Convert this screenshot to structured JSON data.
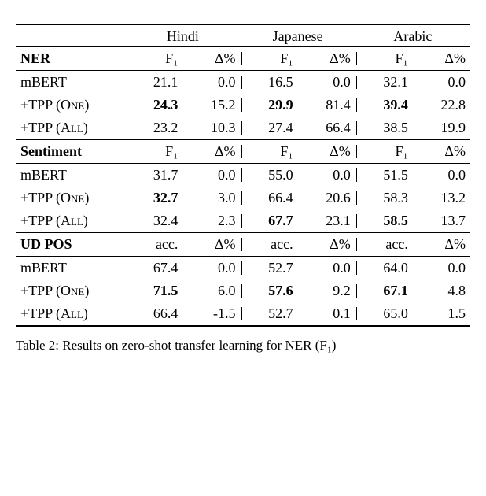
{
  "langs": [
    "Hindi",
    "Japanese",
    "Arabic"
  ],
  "sections": [
    {
      "name": "NER",
      "metric": "F₁",
      "delta": "Δ%",
      "rows": [
        {
          "label": "mBERT",
          "v": [
            "21.1",
            "0.0",
            "16.5",
            "0.0",
            "32.1",
            "0.0"
          ],
          "bold": [
            false,
            false,
            false,
            false,
            false,
            false
          ]
        },
        {
          "label_html": "+TPP (O<span class=\"sc\">ne</span>)",
          "v": [
            "24.3",
            "15.2",
            "29.9",
            "81.4",
            "39.4",
            "22.8"
          ],
          "bold": [
            true,
            false,
            true,
            false,
            true,
            false
          ]
        },
        {
          "label_html": "+TPP (A<span class=\"sc\">ll</span>)",
          "v": [
            "23.2",
            "10.3",
            "27.4",
            "66.4",
            "38.5",
            "19.9"
          ],
          "bold": [
            false,
            false,
            false,
            false,
            false,
            false
          ]
        }
      ]
    },
    {
      "name": "Sentiment",
      "metric": "F₁",
      "delta": "Δ%",
      "rows": [
        {
          "label": "mBERT",
          "v": [
            "31.7",
            "0.0",
            "55.0",
            "0.0",
            "51.5",
            "0.0"
          ],
          "bold": [
            false,
            false,
            false,
            false,
            false,
            false
          ]
        },
        {
          "label_html": "+TPP (O<span class=\"sc\">ne</span>)",
          "v": [
            "32.7",
            "3.0",
            "66.4",
            "20.6",
            "58.3",
            "13.2"
          ],
          "bold": [
            true,
            false,
            false,
            false,
            false,
            false
          ]
        },
        {
          "label_html": "+TPP (A<span class=\"sc\">ll</span>)",
          "v": [
            "32.4",
            "2.3",
            "67.7",
            "23.1",
            "58.5",
            "13.7"
          ],
          "bold": [
            false,
            false,
            true,
            false,
            true,
            false
          ]
        }
      ]
    },
    {
      "name": "UD POS",
      "metric": "acc.",
      "delta": "Δ%",
      "rows": [
        {
          "label": "mBERT",
          "v": [
            "67.4",
            "0.0",
            "52.7",
            "0.0",
            "64.0",
            "0.0"
          ],
          "bold": [
            false,
            false,
            false,
            false,
            false,
            false
          ]
        },
        {
          "label_html": "+TPP (O<span class=\"sc\">ne</span>)",
          "v": [
            "71.5",
            "6.0",
            "57.6",
            "9.2",
            "67.1",
            "4.8"
          ],
          "bold": [
            true,
            false,
            true,
            false,
            true,
            false
          ]
        },
        {
          "label_html": "+TPP (A<span class=\"sc\">ll</span>)",
          "v": [
            "66.4",
            "-1.5",
            "52.7",
            "0.1",
            "65.0",
            "1.5"
          ],
          "bold": [
            false,
            false,
            false,
            false,
            false,
            false
          ]
        }
      ]
    }
  ],
  "caption_prefix": "Table 2: Results on zero-shot transfer learning for NER (F₁)",
  "colwidths_pct": [
    24,
    12.6,
    12.6,
    12.6,
    12.6,
    12.6,
    12.6
  ],
  "colors": {
    "rule": "#000000",
    "text": "#000000",
    "bg": "#ffffff"
  },
  "font": {
    "family": "Times New Roman",
    "size_pt": 13
  }
}
